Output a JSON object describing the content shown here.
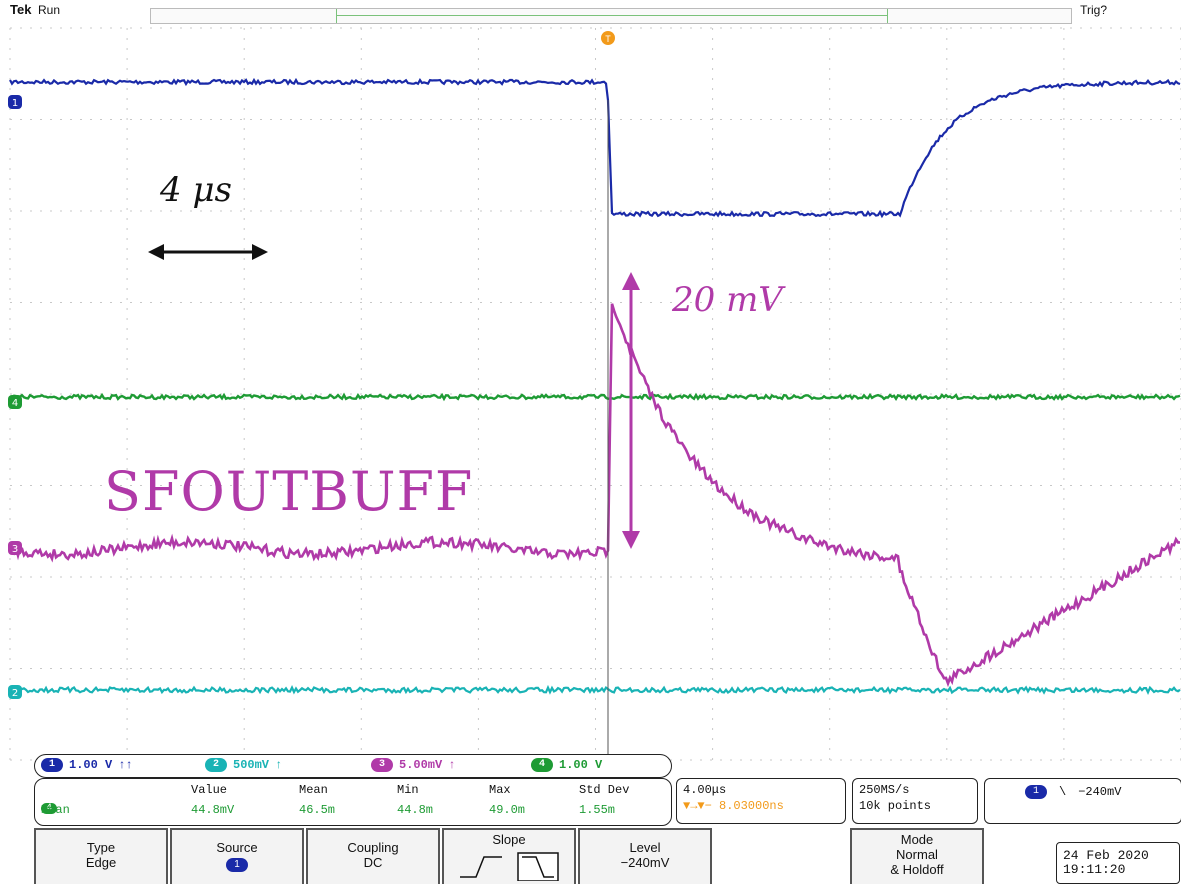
{
  "header": {
    "brand": "Tek",
    "run_state": "Run",
    "trigger_status": "Trig?"
  },
  "annotations": {
    "time_scale": "4 μs",
    "amplitude_scale": "20 mV",
    "signal_name": "SFOUTBUFF"
  },
  "channel_markers": {
    "ch1": "1",
    "ch2": "2",
    "ch3": "3",
    "ch4": "4",
    "trigger": "T"
  },
  "channels": [
    {
      "id": "1",
      "scale": "1.00 V",
      "coupling": "↑↑",
      "color": "#1a2aa8"
    },
    {
      "id": "2",
      "scale": "500mV",
      "coupling": "↑",
      "color": "#19b3b5"
    },
    {
      "id": "3",
      "scale": "5.00mV",
      "coupling": "↑",
      "color": "#b03aa8"
    },
    {
      "id": "4",
      "scale": "1.00 V",
      "coupling": "",
      "color": "#1e9b34"
    }
  ],
  "measurements": {
    "headers": [
      "Value",
      "Mean",
      "Min",
      "Max",
      "Std Dev"
    ],
    "row": {
      "channel": "4",
      "type": "Mean",
      "values": [
        "44.8mV",
        "46.5m",
        "44.8m",
        "49.0m",
        "1.55m"
      ]
    }
  },
  "timebase": {
    "scale": "4.00μs",
    "position": "▼→▼− 8.03000ns"
  },
  "acquisition": {
    "rate": "250MS/s",
    "record": "10k points"
  },
  "trigger": {
    "source": "1",
    "slope_symbol": "\\",
    "level": "−240mV"
  },
  "menu": {
    "type": {
      "title": "Type",
      "value": "Edge"
    },
    "source": {
      "title": "Source",
      "value": "1"
    },
    "coupling": {
      "title": "Coupling",
      "value": "DC"
    },
    "slope": {
      "title": "Slope"
    },
    "level": {
      "title": "Level",
      "value": "−240mV"
    },
    "mode": {
      "title": "Mode",
      "value": "Normal",
      "value2": "& Holdoff"
    }
  },
  "datetime": {
    "date": "24 Feb 2020",
    "time": "19:11:20"
  },
  "colors": {
    "ch1": "#1a2aa8",
    "ch2": "#19b3b5",
    "ch3": "#b03aa8",
    "ch4": "#1e9b34",
    "trigger": "#f29a1a",
    "annotation": "#b03aa8",
    "grid": "#c8c8c8"
  }
}
